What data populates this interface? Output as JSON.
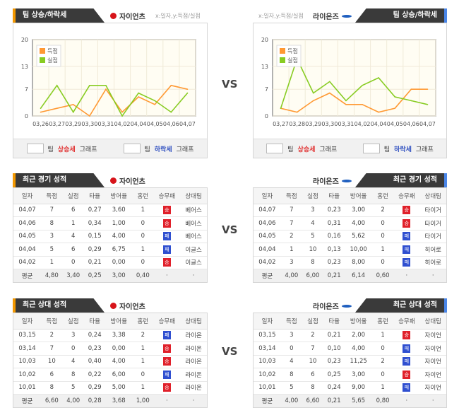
{
  "common": {
    "vs": "VS",
    "axis_note": "x:일자,y:득점/실점",
    "trend_header": "팀 상승/하락세",
    "recent_header": "최근 경기 성적",
    "h2h_header": "최근 상대 성적",
    "legend_up": {
      "prefix": "팀",
      "word": "상승세",
      "suffix": "그래프"
    },
    "legend_down": {
      "prefix": "팀",
      "word": "하락세",
      "suffix": "그래프"
    },
    "columns": [
      "일자",
      "득점",
      "실점",
      "타율",
      "방어율",
      "홈런",
      "승무패",
      "상대팀"
    ],
    "avg_label": "평균"
  },
  "teams": {
    "left": "자이언츠",
    "right": "라이온즈"
  },
  "colors": {
    "scored": "#ff9933",
    "allowed": "#88cc22",
    "win": "#e0202a",
    "loss": "#2f4fd0",
    "accent_left": "#f39800",
    "accent_right": "#4a86e8"
  },
  "chart_data": [
    {
      "type": "line",
      "team": "자이언츠",
      "xlabel": "일자",
      "ylabel": "득점/실점",
      "ylim": [
        0,
        20
      ],
      "yticks": [
        0,
        7,
        13,
        20
      ],
      "grid": true,
      "legend": "top-left",
      "categories": [
        "03,26",
        "03,27",
        "03,29",
        "03,30",
        "03,31",
        "04,02",
        "04,04",
        "04,05",
        "04,06",
        "04,07"
      ],
      "series": [
        {
          "name": "득점",
          "values": [
            1,
            2,
            3,
            0,
            7,
            1,
            5,
            3,
            8,
            7
          ]
        },
        {
          "name": "실점",
          "values": [
            2,
            8,
            1,
            8,
            8,
            0,
            6,
            4,
            1,
            6
          ]
        }
      ]
    },
    {
      "type": "line",
      "team": "라이온즈",
      "xlabel": "일자",
      "ylabel": "득점/실점",
      "ylim": [
        0,
        20
      ],
      "yticks": [
        0,
        7,
        13,
        20
      ],
      "grid": true,
      "legend": "top-left",
      "categories": [
        "03,27",
        "03,28",
        "03,29",
        "03,30",
        "03,31",
        "04,02",
        "04,04",
        "04,05",
        "04,06",
        "04,07"
      ],
      "series": [
        {
          "name": "득점",
          "values": [
            2,
            1,
            4,
            6,
            3,
            3,
            1,
            2,
            7,
            7
          ]
        },
        {
          "name": "실점",
          "values": [
            2,
            15,
            6,
            9,
            4,
            8,
            10,
            5,
            4,
            3
          ]
        }
      ]
    }
  ],
  "recent": {
    "left": {
      "rows": [
        [
          "04,07",
          "7",
          "6",
          "0,27",
          "3,60",
          "1",
          "승",
          "베어스"
        ],
        [
          "04,06",
          "8",
          "1",
          "0,34",
          "1,00",
          "0",
          "승",
          "베어스"
        ],
        [
          "04,05",
          "3",
          "4",
          "0,15",
          "4,00",
          "0",
          "패",
          "베어스"
        ],
        [
          "04,04",
          "5",
          "6",
          "0,29",
          "6,75",
          "1",
          "패",
          "이글스"
        ],
        [
          "04,02",
          "1",
          "0",
          "0,21",
          "0,00",
          "0",
          "승",
          "이글스"
        ]
      ],
      "avg": [
        "4,80",
        "3,40",
        "0,25",
        "3,00",
        "0,40",
        "·",
        "·"
      ]
    },
    "right": {
      "rows": [
        [
          "04,07",
          "7",
          "3",
          "0,23",
          "3,00",
          "2",
          "승",
          "타이거"
        ],
        [
          "04,06",
          "7",
          "4",
          "0,31",
          "4,00",
          "0",
          "승",
          "타이거"
        ],
        [
          "04,05",
          "2",
          "5",
          "0,16",
          "5,62",
          "0",
          "패",
          "타이거"
        ],
        [
          "04,04",
          "1",
          "10",
          "0,13",
          "10,00",
          "1",
          "패",
          "히어로"
        ],
        [
          "04,02",
          "3",
          "8",
          "0,23",
          "8,00",
          "0",
          "패",
          "히어로"
        ]
      ],
      "avg": [
        "4,00",
        "6,00",
        "0,21",
        "6,14",
        "0,60",
        "·",
        "·"
      ]
    }
  },
  "h2h": {
    "left": {
      "rows": [
        [
          "03,15",
          "2",
          "3",
          "0,24",
          "3,38",
          "2",
          "패",
          "라이온"
        ],
        [
          "03,14",
          "7",
          "0",
          "0,23",
          "0,00",
          "1",
          "승",
          "라이온"
        ],
        [
          "10,03",
          "10",
          "4",
          "0,40",
          "4,00",
          "1",
          "승",
          "라이온"
        ],
        [
          "10,02",
          "6",
          "8",
          "0,22",
          "6,00",
          "0",
          "패",
          "라이온"
        ],
        [
          "10,01",
          "8",
          "5",
          "0,29",
          "5,00",
          "1",
          "승",
          "라이온"
        ]
      ],
      "avg": [
        "6,60",
        "4,00",
        "0,28",
        "3,68",
        "1,00",
        "·",
        "·"
      ]
    },
    "right": {
      "rows": [
        [
          "03,15",
          "3",
          "2",
          "0,21",
          "2,00",
          "1",
          "승",
          "자이언"
        ],
        [
          "03,14",
          "0",
          "7",
          "0,10",
          "4,00",
          "0",
          "패",
          "자이언"
        ],
        [
          "10,03",
          "4",
          "10",
          "0,23",
          "11,25",
          "2",
          "패",
          "자이언"
        ],
        [
          "10,02",
          "8",
          "6",
          "0,25",
          "3,00",
          "0",
          "승",
          "자이언"
        ],
        [
          "10,01",
          "5",
          "8",
          "0,24",
          "9,00",
          "1",
          "패",
          "자이언"
        ]
      ],
      "avg": [
        "4,00",
        "6,60",
        "0,21",
        "5,65",
        "0,80",
        "·",
        "·"
      ]
    }
  }
}
